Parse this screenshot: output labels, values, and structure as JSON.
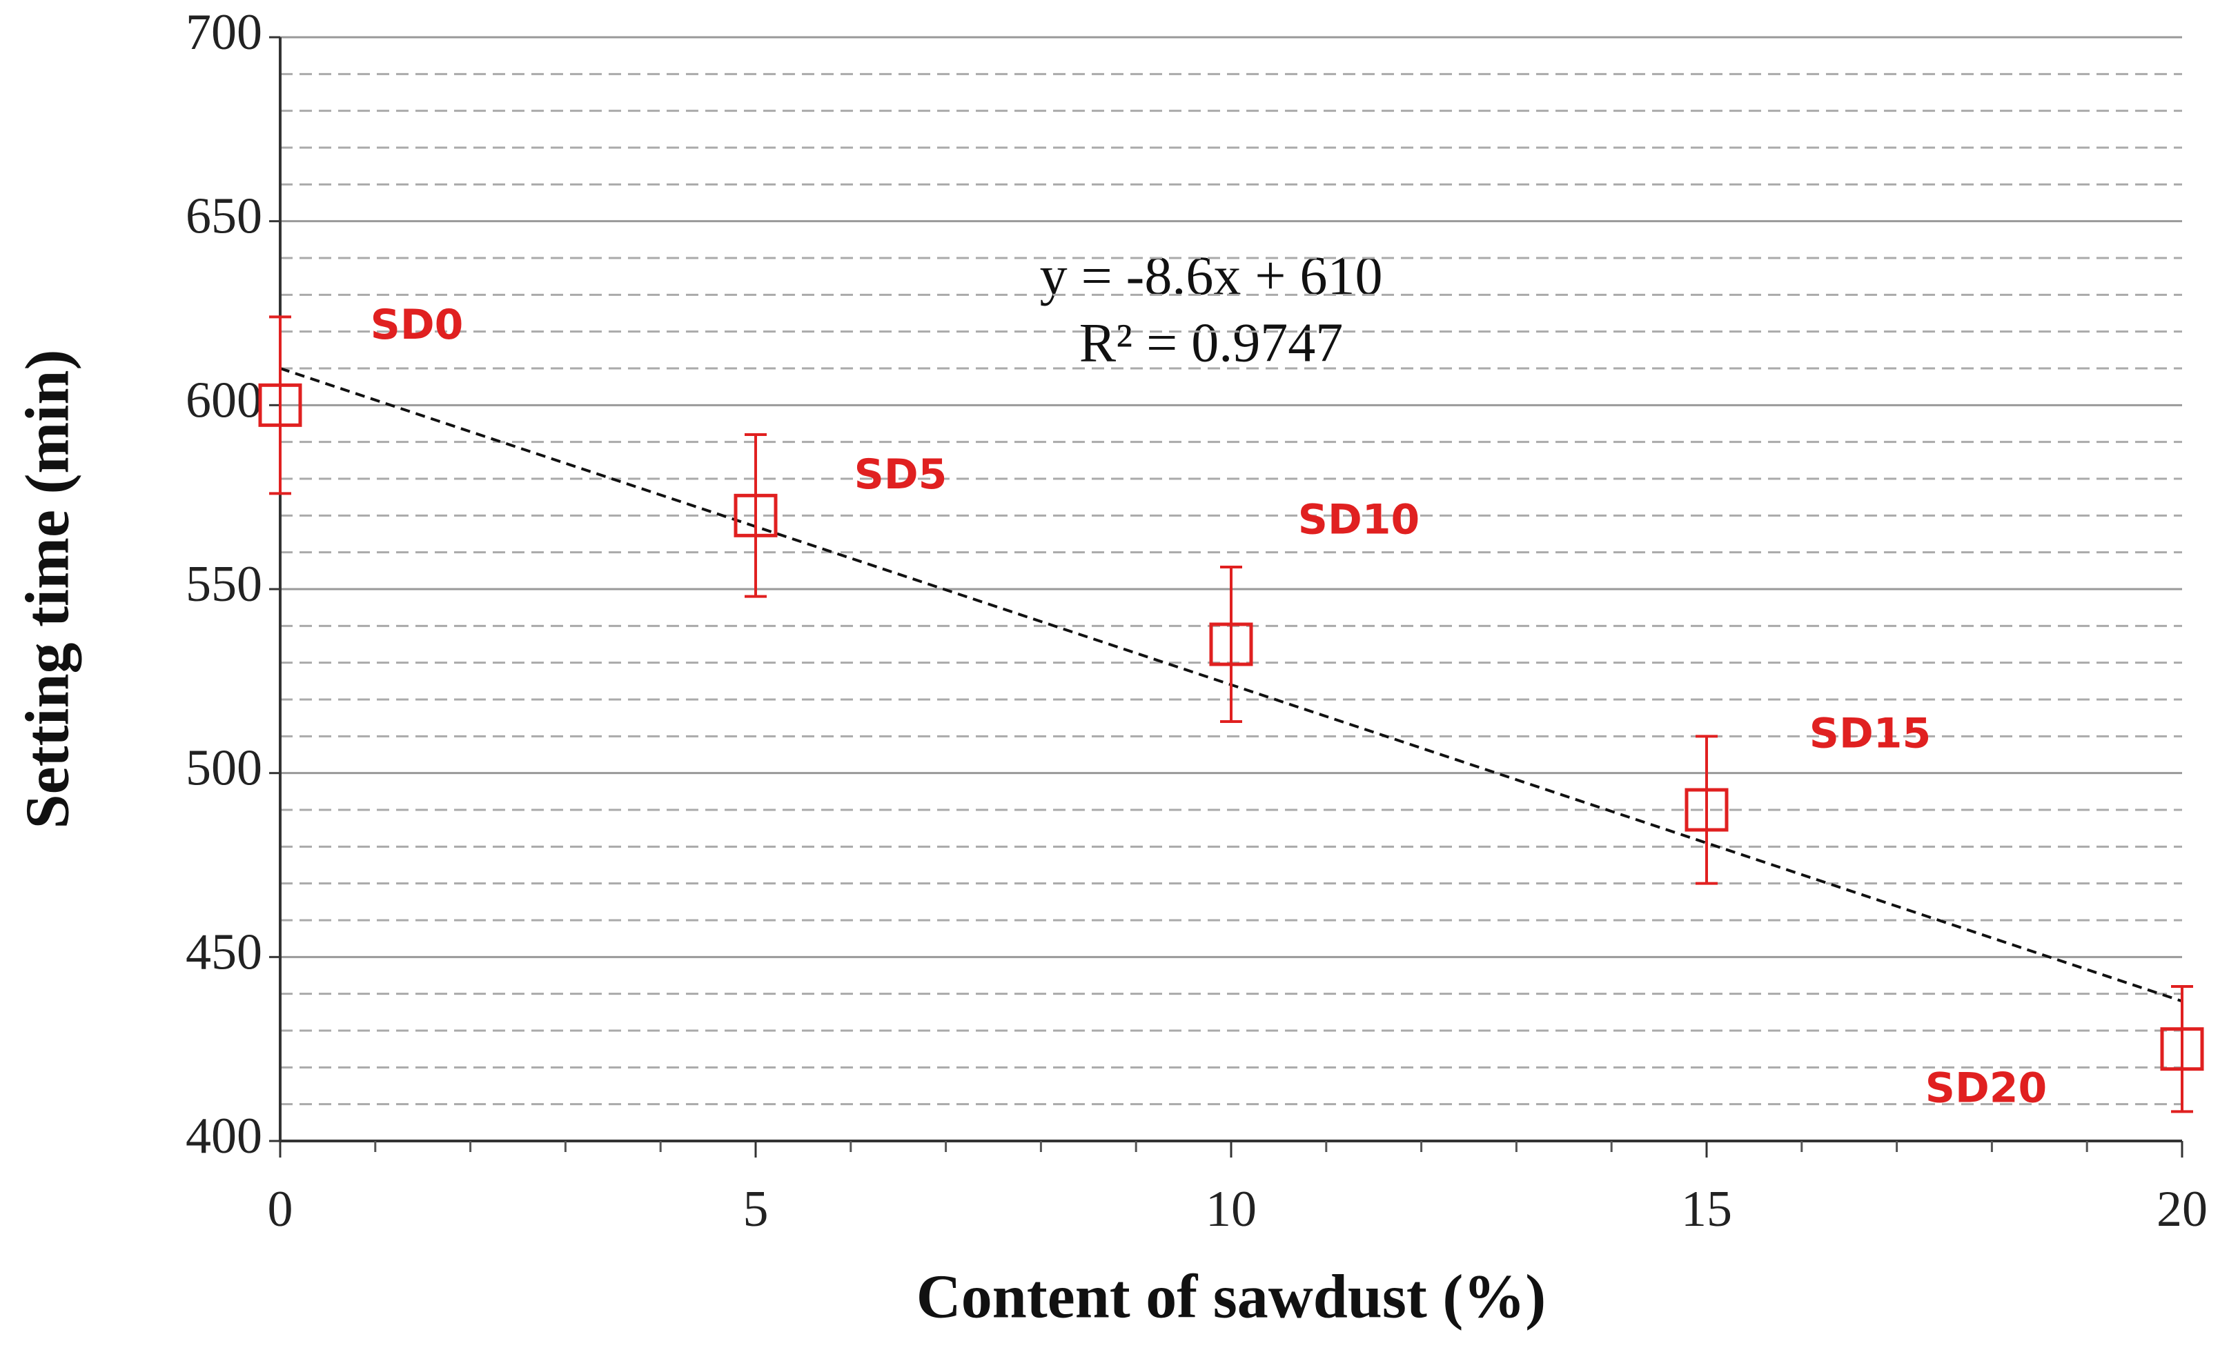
{
  "chart_data": {
    "type": "scatter",
    "xlabel": "Content of sawdust (%)",
    "ylabel": "Setting time (min)",
    "x": [
      0,
      5,
      10,
      15,
      20
    ],
    "series": [
      {
        "color": "#e02020",
        "values": [
          600,
          570,
          535,
          490,
          425
        ],
        "errors": [
          24,
          22,
          21,
          20,
          17
        ],
        "point_labels": [
          "SD0",
          "SD5",
          "SD10",
          "SD15",
          "SD20"
        ]
      }
    ],
    "trendline": {
      "slope": -8.6,
      "intercept": 610,
      "equation": "y = -8.6x + 610",
      "r_squared_label": "R² = 0.9747"
    },
    "xlim": [
      0,
      20
    ],
    "xticks": [
      0,
      5,
      10,
      15,
      20
    ],
    "minor_xticks": [
      1,
      2,
      3,
      4,
      6,
      7,
      8,
      9,
      11,
      12,
      13,
      14,
      16,
      17,
      18,
      19
    ],
    "ylim": [
      400,
      700
    ],
    "yticks": [
      400,
      450,
      500,
      550,
      600,
      650,
      700
    ],
    "minor_yticks": [
      410,
      420,
      430,
      440,
      460,
      470,
      480,
      490,
      510,
      520,
      530,
      540,
      560,
      570,
      580,
      590,
      610,
      620,
      630,
      640,
      660,
      670,
      680,
      690
    ],
    "grid": true
  }
}
